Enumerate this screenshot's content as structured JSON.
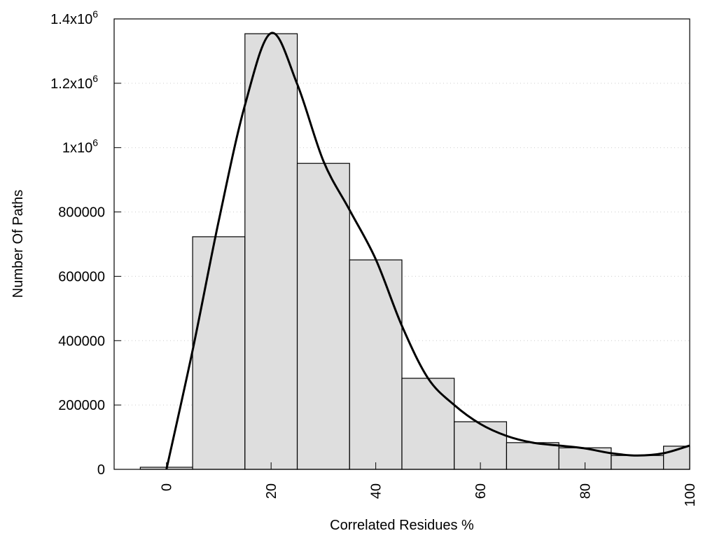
{
  "chart_data": {
    "type": "bar",
    "title": "",
    "xlabel": "Correlated Residues %",
    "ylabel": "Number Of Paths",
    "xlim": [
      -10,
      100
    ],
    "ylim": [
      0,
      1400000
    ],
    "grid": "horizontal dotted",
    "bar_width": 10,
    "bar_color": "#dedede",
    "x_ticks": [
      0,
      20,
      40,
      60,
      80,
      100
    ],
    "y_ticks": [
      {
        "value": 0,
        "label": "0",
        "exp": ""
      },
      {
        "value": 200000,
        "label": "200000",
        "exp": ""
      },
      {
        "value": 400000,
        "label": "400000",
        "exp": ""
      },
      {
        "value": 600000,
        "label": "600000",
        "exp": ""
      },
      {
        "value": 800000,
        "label": "800000",
        "exp": ""
      },
      {
        "value": 1000000,
        "label": "1x10",
        "exp": "6"
      },
      {
        "value": 1200000,
        "label": "1.2x10",
        "exp": "6"
      },
      {
        "value": 1400000,
        "label": "1.4x10",
        "exp": "6"
      }
    ],
    "bars": {
      "x": [
        0,
        10,
        20,
        30,
        40,
        50,
        60,
        70,
        80,
        90,
        100
      ],
      "values": [
        6500,
        723000,
        1354000,
        951000,
        651000,
        283000,
        148000,
        83000,
        67000,
        43000,
        72000
      ]
    },
    "series": [
      {
        "name": "smoothed curve",
        "type": "line",
        "color": "#000000",
        "x": [
          0,
          5,
          10,
          15,
          20,
          25,
          30,
          35,
          40,
          45,
          50,
          55,
          60,
          65,
          70,
          75,
          80,
          85,
          90,
          95,
          100
        ],
        "values": [
          0,
          370000,
          773000,
          1132000,
          1356000,
          1197000,
          958000,
          806000,
          653000,
          446000,
          283000,
          200000,
          141000,
          104000,
          83000,
          74000,
          65000,
          50000,
          43000,
          50000,
          74000
        ]
      }
    ]
  }
}
